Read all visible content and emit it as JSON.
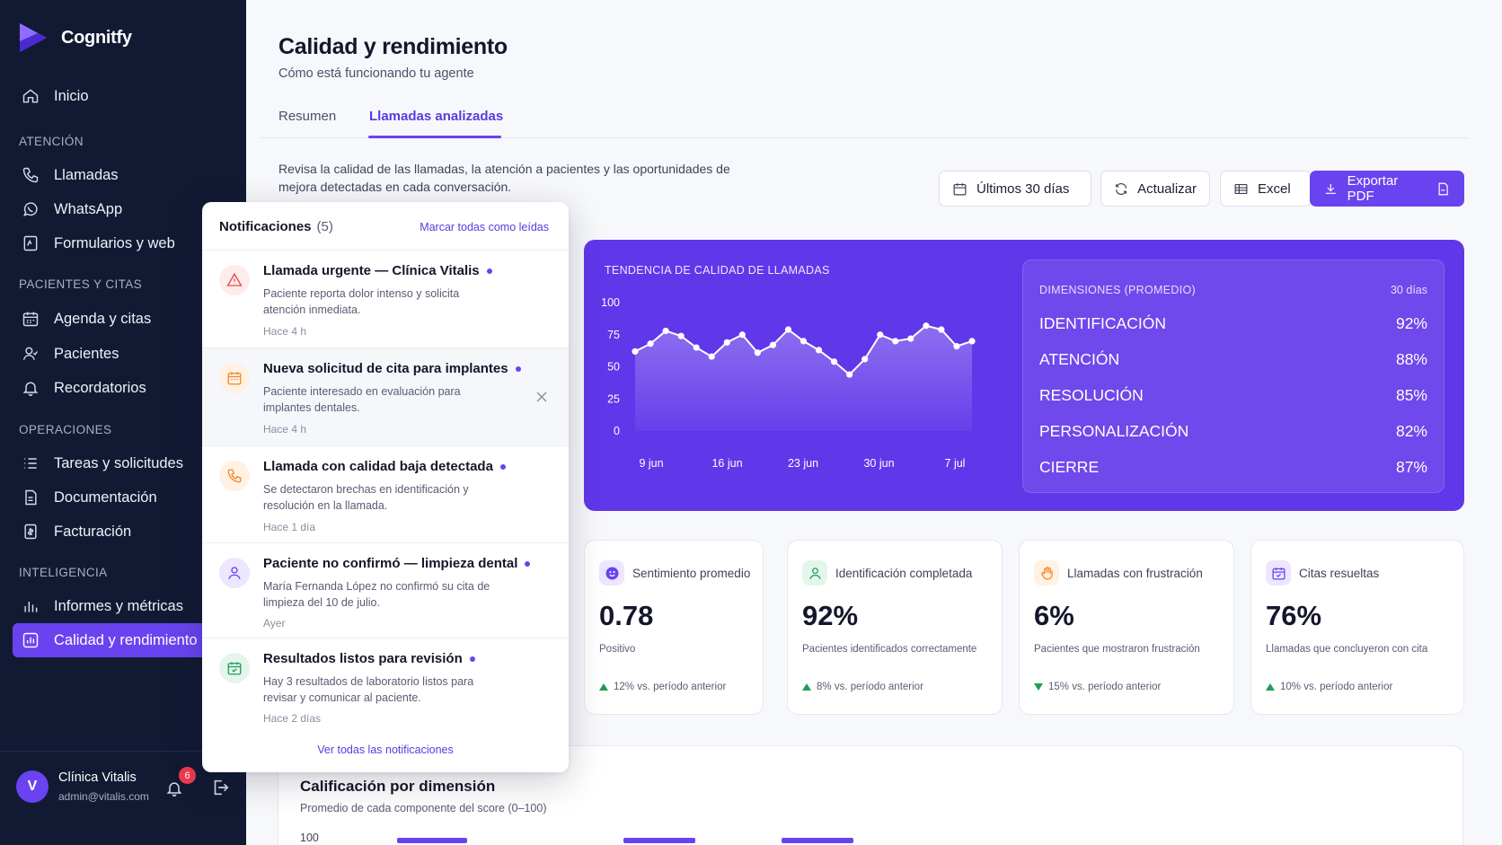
{
  "brand": {
    "name": "Cognitfy"
  },
  "sidebar": {
    "home": "Inicio",
    "sections": {
      "atencion": "ATENCIÓN",
      "pacientes": "PACIENTES Y CITAS",
      "operaciones": "OPERACIONES",
      "inteligencia": "INTELIGENCIA"
    },
    "items": {
      "llamadas": "Llamadas",
      "whatsapp": "WhatsApp",
      "formularios": "Formularios y web",
      "agenda": "Agenda y citas",
      "pacientes": "Pacientes",
      "recordatorios": "Recordatorios",
      "tareas": "Tareas y solicitudes",
      "documentacion": "Documentación",
      "facturacion": "Facturación",
      "informes": "Informes y métricas",
      "calidad": "Calidad y rendimiento"
    },
    "user": {
      "initial": "V",
      "name": "Clínica Vitalis",
      "email": "admin@vitalis.com",
      "notifications_badge": "6"
    }
  },
  "header": {
    "title": "Calidad y rendimiento",
    "subtitle": "Cómo está funcionando tu agente",
    "tabs": [
      "Resumen",
      "Llamadas analizadas"
    ],
    "active_tab": "Llamadas analizadas",
    "description": "Revisa la calidad de las llamadas, la atención a pacientes y las oportunidades de mejora detectadas en cada conversación."
  },
  "toolbar": {
    "range": "Últimos 30 días",
    "refresh": "Actualizar",
    "excel": "Excel",
    "export_pdf": "Exportar PDF"
  },
  "trend": {
    "title": "TENDENCIA DE CALIDAD DE LLAMADAS",
    "color": "#6137ea"
  },
  "chart_data": {
    "type": "area",
    "title": "TENDENCIA DE CALIDAD DE LLAMADAS",
    "xlabel": "",
    "ylabel": "",
    "ylim": [
      0,
      100
    ],
    "y_ticks": [
      100,
      75,
      50,
      25,
      0
    ],
    "x_ticks": [
      "9 jun",
      "16 jun",
      "23 jun",
      "30 jun",
      "7 jul"
    ],
    "grid": false,
    "values": [
      62,
      68,
      78,
      74,
      65,
      58,
      69,
      75,
      61,
      67,
      79,
      70,
      63,
      54,
      44,
      56,
      75,
      70,
      72,
      82,
      79,
      66,
      70
    ]
  },
  "dimensions": {
    "title": "DIMENSIONES (PROMEDIO)",
    "period": "30 días",
    "rows": [
      {
        "label": "IDENTIFICACIÓN",
        "value": "92%"
      },
      {
        "label": "ATENCIÓN",
        "value": "88%"
      },
      {
        "label": "RESOLUCIÓN",
        "value": "85%"
      },
      {
        "label": "PERSONALIZACIÓN",
        "value": "82%"
      },
      {
        "label": "CIERRE",
        "value": "87%"
      }
    ]
  },
  "kpis": [
    {
      "label": "Sentimiento promedio",
      "value": "0.78",
      "sub": "Positivo",
      "delta": "12% vs. período anterior",
      "icon": "smile-icon",
      "color": "#6a43f0"
    },
    {
      "label": "Identificación completada",
      "value": "92%",
      "sub": "Pacientes identificados correctamente",
      "delta": "8% vs. período anterior",
      "icon": "user-icon",
      "color": "#1f9d55"
    },
    {
      "label": "Llamadas con frustración",
      "value": "6%",
      "sub": "Pacientes que mostraron frustración",
      "delta": "15% vs. período anterior",
      "icon": "hand-icon",
      "color": "#f08a24"
    },
    {
      "label": "Citas resueltas",
      "value": "76%",
      "sub": "Llamadas que concluyeron con cita",
      "delta": "10% vs. período anterior",
      "icon": "calendar-icon",
      "color": "#6a43f0"
    }
  ],
  "dimension_panel": {
    "title": "Calificación por dimensión",
    "subtitle": "Promedio de cada componente del score (0–100)",
    "axis_top": "100"
  },
  "notifications": {
    "title": "Notificaciones",
    "count": "(5)",
    "mark_all": "Marcar todas como leídas",
    "view_all": "Ver todas las notificaciones",
    "items": [
      {
        "title": "Llamada urgente — Clínica Vitalis",
        "body": "Paciente reporta dolor intenso y solicita atención inmediata.",
        "time": "Hace 4 h",
        "icon": "alert-icon",
        "color": "#e5484d"
      },
      {
        "title": "Nueva solicitud de cita para implantes",
        "body": "Paciente interesado en evaluación para implantes dentales.",
        "time": "Hace 4 h",
        "icon": "calendar-icon",
        "color": "#f08a24"
      },
      {
        "title": "Llamada con calidad baja detectada",
        "body": "Se detectaron brechas en identificación y resolución en la llamada.",
        "time": "Hace 1 día",
        "icon": "phone-icon",
        "color": "#f08a24"
      },
      {
        "title": "Paciente no confirmó — limpieza dental",
        "body": "María Fernanda López no confirmó su cita de limpieza del 10 de julio.",
        "time": "Ayer",
        "icon": "user-icon",
        "color": "#6a43f0"
      },
      {
        "title": "Resultados listos para revisión",
        "body": "Hay 3 resultados de laboratorio listos para revisar y comunicar al paciente.",
        "time": "Hace 2 días",
        "icon": "calendar-check-icon",
        "color": "#1f9d55"
      }
    ]
  }
}
